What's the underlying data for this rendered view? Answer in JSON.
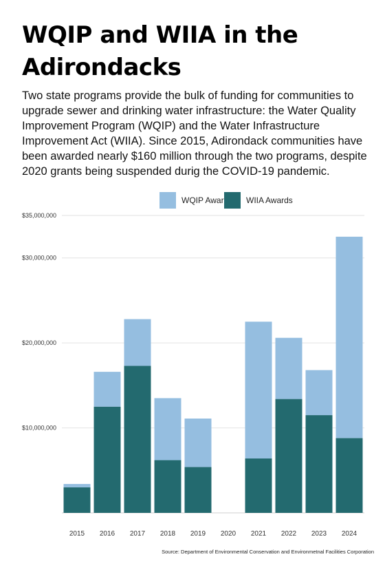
{
  "header": {
    "title": "WQIP and WIIA in the Adirondacks",
    "subtitle": "Two state programs provide the bulk of funding for communities to upgrade sewer and drinking water infrastructure: the Water Quality Improvement Program (WQIP) and the Water Infrastructure Improvement Act (WIIA). Since 2015, Adirondack communities have been awarded nearly $160 million through the two programs, despite 2020 grants being suspended durig the COVID-19 pandemic."
  },
  "source": "Source: Department of Environmental Conservation and Environmetnal Facilities Corporation",
  "chart_data": {
    "type": "bar",
    "stacked": true,
    "categories": [
      "2015",
      "2016",
      "2017",
      "2018",
      "2019",
      "2020",
      "2021",
      "2022",
      "2023",
      "2024"
    ],
    "series": [
      {
        "name": "WIIA Awards",
        "color": "#236a6f",
        "values": [
          3000000,
          12500000,
          17300000,
          6200000,
          5400000,
          0,
          6400000,
          13400000,
          11500000,
          8800000
        ]
      },
      {
        "name": "WQIP Awards",
        "color": "#95bee0",
        "values": [
          400000,
          4100000,
          5500000,
          7300000,
          5700000,
          0,
          16100000,
          7200000,
          5300000,
          23700000
        ]
      }
    ],
    "yticks": [
      "$10,000,000",
      "$20,000,000",
      "$30,000,000",
      "$35,000,000"
    ],
    "ytick_values": [
      10000000,
      20000000,
      30000000,
      35000000
    ],
    "ylim": [
      0,
      35000000
    ],
    "legend_order": [
      "WQIP Awards",
      "WIIA Awards"
    ],
    "legend_position": "top",
    "grid": true
  }
}
